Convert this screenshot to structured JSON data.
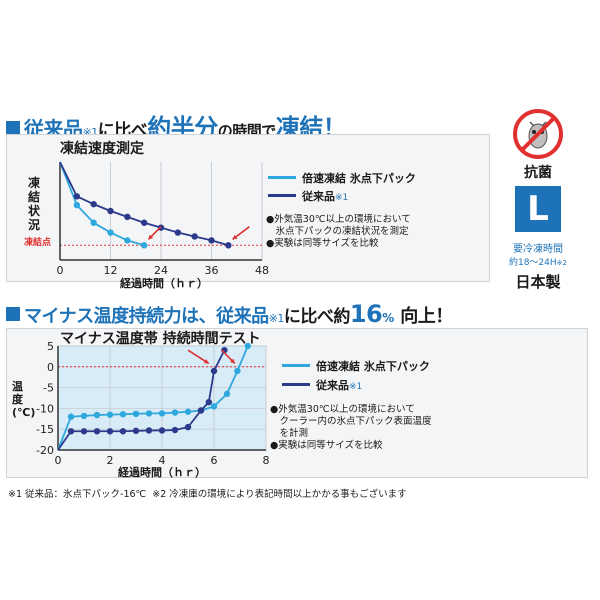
{
  "headline1": {
    "part1": "従来品",
    "note": "※1",
    "part2": "に比べ",
    "part3": "約半分",
    "part4": "の時間で",
    "part5": "凍結！"
  },
  "headline2": {
    "part1": "マイナス温度持続力は、従来品",
    "note": "※1",
    "part2": "に比べ約",
    "part3": "16",
    "part4": "%",
    "part5": "向上！"
  },
  "badge": {
    "antibac": "抗菌",
    "size": "L",
    "time_label": "要冷凍時間",
    "time_range": "約18〜24H",
    "time_note": "※2",
    "made_in": "日本製"
  },
  "footer": {
    "note1": "※1 従来品：氷点下パック-16℃",
    "note2": "※2 冷凍庫の環境により表記時間以上かかる事もございます"
  },
  "colors": {
    "accent": "#1e73b8",
    "series_a": "#2fa8dd",
    "series_b": "#2c3a8c",
    "arrow": "#e03030",
    "zero_line": "#e03030"
  },
  "chart1": {
    "title": "凍結速度測定",
    "ylabel": "凍結状況",
    "freeze_label": "凍結点",
    "xlabel": "経過時間（ｈｒ）",
    "legend": {
      "a": "倍速凍結 氷点下パック",
      "b_name": "従来品",
      "b_note": "※1"
    },
    "notes": [
      "●外気温30℃以上の環境において",
      "　氷点下パックの凍結状況を測定",
      "●実験は同等サイズを比較"
    ]
  },
  "chart2": {
    "title": "マイナス温度帯 持続時間テスト",
    "ylabel": "温度(℃)",
    "xlabel": "経過時間（ｈｒ）",
    "legend": {
      "a": "倍速凍結 氷点下パック",
      "b_name": "従来品",
      "b_note": "※1"
    },
    "notes": [
      "●外気温30℃以上の環境において",
      "　クーラー内の氷点下パック表面温度",
      "　を計測",
      "●実験は同等サイズを比較"
    ]
  },
  "chart_data": [
    {
      "type": "line",
      "title": "凍結速度測定",
      "xlabel": "経過時間（ｈｒ）",
      "ylabel": "凍結状況",
      "x_ticks": [
        0,
        12,
        24,
        36,
        48
      ],
      "xlim": [
        0,
        48
      ],
      "ylim": [
        0,
        10
      ],
      "reference_line": {
        "label": "凍結点",
        "y": 1.5
      },
      "series": [
        {
          "name": "倍速凍結 氷点下パック",
          "x": [
            0,
            4,
            8,
            12,
            16,
            20
          ],
          "y": [
            10,
            5.6,
            3.8,
            2.8,
            2.0,
            1.5
          ]
        },
        {
          "name": "従来品",
          "x": [
            0,
            4,
            8,
            12,
            16,
            20,
            24,
            28,
            32,
            36,
            40
          ],
          "y": [
            10,
            6.5,
            5.7,
            5.0,
            4.4,
            3.8,
            3.3,
            2.8,
            2.4,
            2.0,
            1.5
          ]
        }
      ]
    },
    {
      "type": "line",
      "title": "マイナス温度帯 持続時間テスト",
      "xlabel": "経過時間（ｈｒ）",
      "ylabel": "温度(℃)",
      "x_ticks": [
        0,
        2,
        4,
        6,
        8
      ],
      "y_ticks": [
        5,
        0,
        -5,
        -10,
        -15,
        -20
      ],
      "xlim": [
        0,
        8
      ],
      "ylim": [
        -20,
        5
      ],
      "reference_line": {
        "y": 0
      },
      "series": [
        {
          "name": "倍速凍結 氷点下パック",
          "x": [
            0,
            0.5,
            1,
            1.5,
            2,
            2.5,
            3,
            3.5,
            4,
            4.5,
            5,
            5.5,
            6,
            6.5,
            6.9,
            7.3
          ],
          "y": [
            -20,
            -12,
            -11.8,
            -11.6,
            -11.5,
            -11.4,
            -11.3,
            -11.2,
            -11.2,
            -11.0,
            -10.8,
            -10.5,
            -9.5,
            -6.5,
            -1.0,
            5.0
          ]
        },
        {
          "name": "従来品",
          "x": [
            0,
            0.5,
            1,
            1.5,
            2,
            2.5,
            3,
            3.5,
            4,
            4.5,
            5,
            5.5,
            5.8,
            6,
            6.4
          ],
          "y": [
            -20,
            -15.5,
            -15.5,
            -15.5,
            -15.5,
            -15.5,
            -15.4,
            -15.3,
            -15.3,
            -15.2,
            -14.5,
            -10.5,
            -8.5,
            -1.0,
            4.0
          ]
        }
      ]
    }
  ]
}
